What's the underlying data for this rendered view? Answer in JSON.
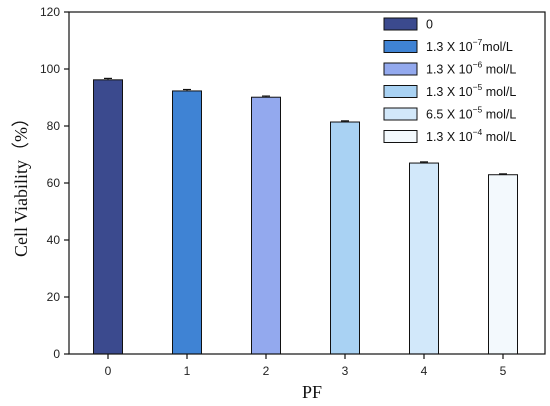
{
  "chart_data": {
    "type": "bar",
    "xlabel": "PF",
    "ylabel": "Cell Viability（%）",
    "ylim": [
      0,
      120
    ],
    "yticks": [
      0,
      20,
      40,
      60,
      80,
      100,
      120
    ],
    "categories": [
      "0",
      "1",
      "2",
      "3",
      "4",
      "5"
    ],
    "values": [
      96.2,
      92.3,
      90.1,
      81.4,
      67.0,
      62.9
    ],
    "errors": [
      0.5,
      0.5,
      0.4,
      0.4,
      0.4,
      0.3
    ],
    "colors": [
      "#3b4a8e",
      "#3f83d4",
      "#93a9ee",
      "#a9d2f3",
      "#d2e8fa",
      "#f3f9fd"
    ],
    "legend_position": "top-right",
    "legend": [
      {
        "base": "0",
        "exp": "",
        "suffix": ""
      },
      {
        "base": "1.3 X 10",
        "exp": "−7",
        "suffix": "mol/L"
      },
      {
        "base": "1.3 X 10",
        "exp": "−6",
        "suffix": " mol/L"
      },
      {
        "base": "1.3 X 10",
        "exp": "−5",
        "suffix": " mol/L"
      },
      {
        "base": "6.5 X 10",
        "exp": "−5",
        "suffix": " mol/L"
      },
      {
        "base": "1.3 X 10",
        "exp": "−4",
        "suffix": " mol/L"
      }
    ]
  }
}
